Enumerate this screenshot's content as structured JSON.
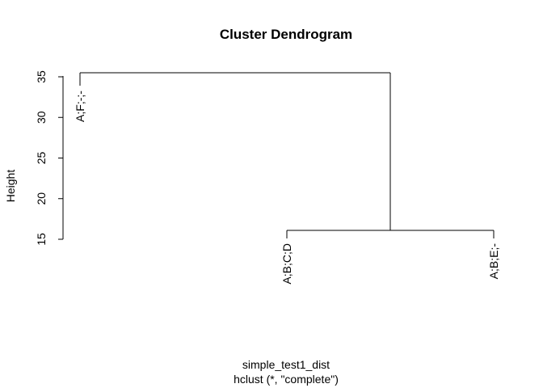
{
  "chart_data": {
    "type": "dendrogram",
    "title": "Cluster Dendrogram",
    "xlabel": "simple_test1_dist",
    "subtitle": "hclust (*, \"complete\")",
    "ylabel": "Height",
    "ylim": [
      15,
      35
    ],
    "yticks": [
      "15",
      "20",
      "25",
      "30",
      "35"
    ],
    "leaves": [
      "A;F;-;-",
      "A;B;C;D",
      "A;B;E;-"
    ],
    "leaf_heights": [
      33.9,
      15.1,
      15.1
    ],
    "merges": [
      {
        "left": "A;B;C;D",
        "right": "A;B;E;-",
        "height": 16.1
      },
      {
        "left": "A;F;-;-",
        "right": "cluster-1",
        "height": 35.5
      }
    ],
    "grid": false,
    "legend": "none"
  }
}
